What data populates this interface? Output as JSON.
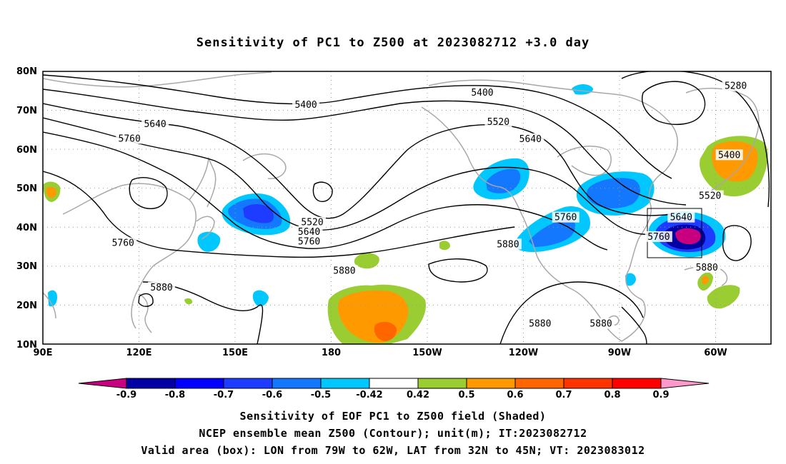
{
  "title": "Sensitivity of PC1 to Z500 at 2023082712 +3.0 day",
  "map": {
    "lat_ticks": [
      "80N",
      "70N",
      "60N",
      "50N",
      "40N",
      "30N",
      "20N",
      "10N"
    ],
    "lon_ticks": [
      "90E",
      "120E",
      "150E",
      "180",
      "150W",
      "120W",
      "90W",
      "60W"
    ],
    "contour_labels": [
      {
        "text": "5280",
        "lat": 76.2,
        "lon": -54
      },
      {
        "text": "5400",
        "lat": 74.5,
        "lon": -133
      },
      {
        "text": "5400",
        "lat": 71.4,
        "lon": 172
      },
      {
        "text": "5520",
        "lat": 67,
        "lon": -128
      },
      {
        "text": "5640",
        "lat": 66.4,
        "lon": 125
      },
      {
        "text": "5640",
        "lat": 62.6,
        "lon": -118
      },
      {
        "text": "5760",
        "lat": 62.7,
        "lon": 117
      },
      {
        "text": "5400",
        "lat": 58.5,
        "lon": -56
      },
      {
        "text": "5520",
        "lat": 48,
        "lon": -62
      },
      {
        "text": "5760",
        "lat": 42.5,
        "lon": -107
      },
      {
        "text": "5640",
        "lat": 42.5,
        "lon": -71
      },
      {
        "text": "5520",
        "lat": 41.2,
        "lon": 174
      },
      {
        "text": "5640",
        "lat": 38.8,
        "lon": 173
      },
      {
        "text": "5760",
        "lat": 36.3,
        "lon": 173
      },
      {
        "text": "5760",
        "lat": 35.9,
        "lon": 115
      },
      {
        "text": "5880",
        "lat": 35.6,
        "lon": -125
      },
      {
        "text": "5760",
        "lat": 37.5,
        "lon": -78
      },
      {
        "text": "5880",
        "lat": 29.6,
        "lon": -63
      },
      {
        "text": "5880",
        "lat": 28.8,
        "lon": -176
      },
      {
        "text": "5880",
        "lat": 24.5,
        "lon": 127
      },
      {
        "text": "5880",
        "lat": 15.2,
        "lon": -115
      },
      {
        "text": "5880",
        "lat": 15.2,
        "lon": -96
      }
    ]
  },
  "colorbar": {
    "labels": [
      "-0.9",
      "-0.8",
      "-0.7",
      "-0.6",
      "-0.5",
      "-0.42",
      "0.42",
      "0.5",
      "0.6",
      "0.7",
      "0.8",
      "0.9"
    ],
    "colors": [
      "#c8007f",
      "#0000a5",
      "#0000ff",
      "#1e3cff",
      "#1478ff",
      "#00c8ff",
      "#ffffff",
      "#9acd32",
      "#ff9900",
      "#ff6600",
      "#ff3300",
      "#ff0000",
      "#ff99cc"
    ]
  },
  "captions": [
    "Sensitivity of EOF PC1 to Z500 field (Shaded)",
    "NCEP ensemble mean Z500 (Contour); unit(m); IT:2023082712",
    "Valid area (box): LON from 79W to 62W, LAT from 32N to 45N; VT: 2023083012"
  ]
}
